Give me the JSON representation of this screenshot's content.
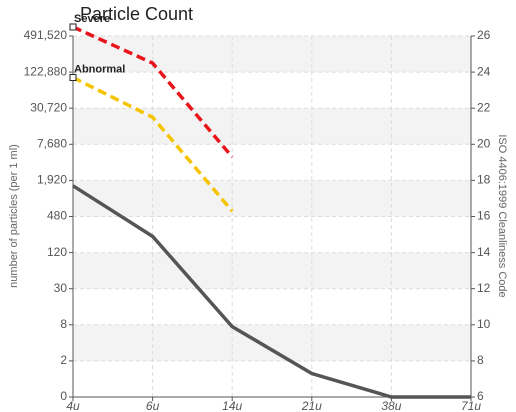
{
  "chart_data": {
    "type": "line",
    "title": "Particle Count",
    "y_label": "number of particles (per 1 ml)",
    "y2_label": "ISO 4406:1999 Cleanliness Code",
    "categories": [
      "4u",
      "6u",
      "14u",
      "21u",
      "38u",
      "71u"
    ],
    "yticks": [
      0,
      2,
      8,
      30,
      120,
      480,
      {
        "value": 1920,
        "label": "1,920"
      },
      {
        "value": 7680,
        "label": "7,680"
      },
      {
        "value": 30720,
        "label": "30,720"
      },
      {
        "value": 122880,
        "label": "122,880"
      },
      {
        "value": 491520,
        "label": "491,520"
      }
    ],
    "y2lim": [
      6,
      26
    ],
    "y2ticks": [
      6,
      8,
      10,
      12,
      14,
      16,
      18,
      20,
      22,
      24,
      26
    ],
    "grid": true,
    "series": [
      {
        "name": "Severe",
        "color": "#e8151b",
        "dashed": true,
        "axis": "y2",
        "values": [
          26.5,
          24.5,
          19.3,
          null,
          null,
          null
        ]
      },
      {
        "name": "Abnormal",
        "color": "#f5c400",
        "dashed": true,
        "axis": "y2",
        "values": [
          23.7,
          21.5,
          16.3,
          null,
          null,
          null
        ]
      },
      {
        "color": "#555555",
        "dashed": false,
        "axis": "y2",
        "values": [
          17.7,
          14.9,
          9.9,
          7.3,
          6,
          6
        ]
      }
    ]
  }
}
